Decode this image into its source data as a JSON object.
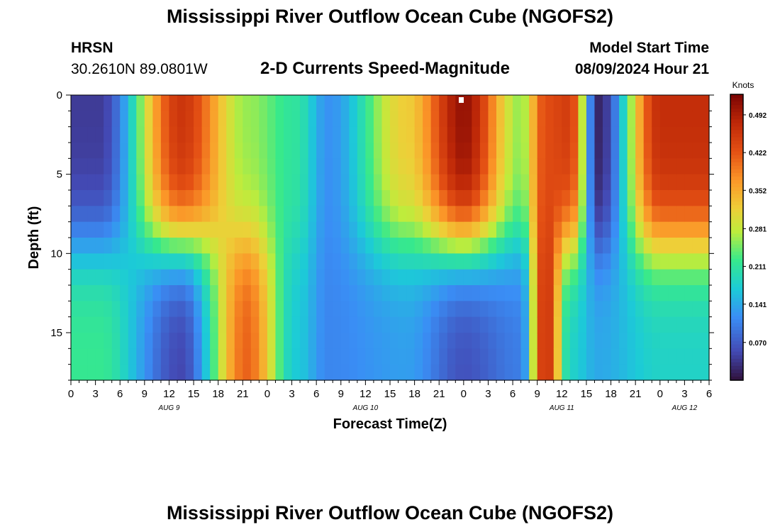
{
  "page": {
    "title_top": "Mississippi River Outflow Ocean Cube (NGOFS2)",
    "title_bottom": "Mississippi River Outflow Ocean Cube (NGOFS2)",
    "station_label": "HRSN",
    "station_coords": "30.2610N  89.0801W",
    "subtitle": "2-D Currents Speed-Magnitude",
    "model_start_label": "Model Start Time",
    "model_start_value": "08/09/2024 Hour 21"
  },
  "chart_data": {
    "type": "heatmap",
    "title": "2-D Currents Speed-Magnitude",
    "xlabel": "Forecast Time(Z)",
    "ylabel": "Depth (ft)",
    "x_tick_labels": [
      "0",
      "3",
      "6",
      "9",
      "12",
      "15",
      "18",
      "21",
      "0",
      "3",
      "6",
      "9",
      "12",
      "15",
      "18",
      "21",
      "0",
      "3",
      "6",
      "9",
      "12",
      "15",
      "18",
      "21",
      "0",
      "3",
      "6"
    ],
    "x_date_labels": [
      {
        "label": "AUG 9",
        "hour": 12
      },
      {
        "label": "AUG 10",
        "hour": 36
      },
      {
        "label": "AUG 11",
        "hour": 60
      },
      {
        "label": "AUG 12",
        "hour": 75
      }
    ],
    "x_range_hours": [
      0,
      78
    ],
    "y_ticks": [
      0,
      5,
      10,
      15
    ],
    "y_range_ft": [
      0,
      18
    ],
    "colorbar": {
      "unit": "Knots",
      "range": [
        0.0,
        0.53
      ],
      "ticks": [
        "0.492",
        "0.422",
        "0.352",
        "0.281",
        "0.211",
        "0.141",
        "0.070"
      ],
      "tick_values": [
        0.492,
        0.422,
        0.352,
        0.281,
        0.211,
        0.141,
        0.07
      ]
    },
    "grid": {
      "time_step_hours": 1,
      "depth_levels": 18
    },
    "features": [
      {
        "hour": 3.5,
        "surface": 0.04,
        "bottom": 0.22
      },
      {
        "hour": 13.5,
        "surface": 0.46,
        "bottom": 0.05
      },
      {
        "hour": 21.5,
        "surface": 0.26,
        "bottom": 0.41
      },
      {
        "hour": 27.5,
        "surface": 0.21,
        "bottom": 0.17
      },
      {
        "hour": 31.5,
        "surface": 0.12,
        "bottom": 0.11
      },
      {
        "hour": 41.0,
        "surface": 0.32,
        "bottom": 0.13
      },
      {
        "hour": 48.0,
        "surface": 0.51,
        "bottom": 0.06
      },
      {
        "hour": 55.0,
        "surface": 0.26,
        "bottom": 0.1
      },
      {
        "hour": 58.0,
        "surface": 0.43,
        "bottom": 0.47
      },
      {
        "hour": 61.0,
        "surface": 0.45,
        "bottom": 0.18
      },
      {
        "hour": 64.5,
        "surface": 0.02,
        "bottom": 0.14
      },
      {
        "hour": 72.0,
        "surface": 0.47,
        "bottom": 0.18
      }
    ]
  }
}
